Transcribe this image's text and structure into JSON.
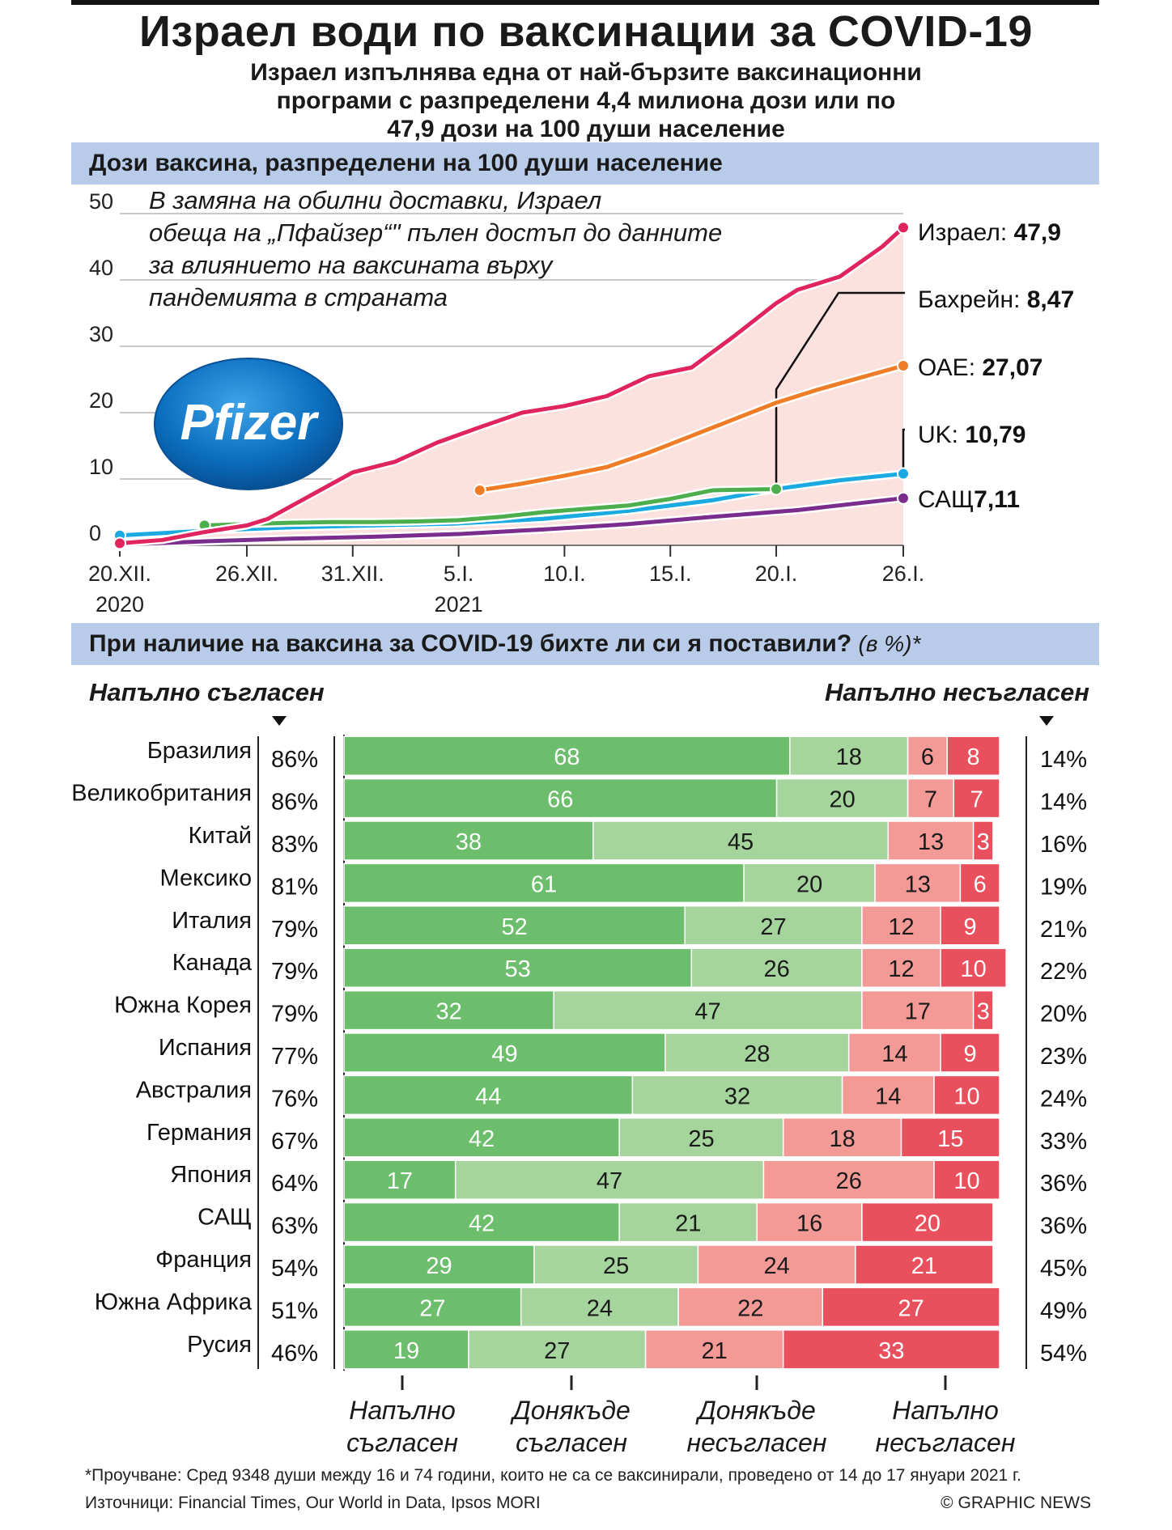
{
  "title": "Израел води по ваксинации за COVID-19",
  "subtitle_lines": [
    "Израел изпълнява една от най-бързите ваксинационни",
    "програми с разпределени 4,4 милиона дози или по",
    "47,9 дози на 100 души население"
  ],
  "section1_title": "Дози ваксина, разпределени на 100 души население",
  "annotation_lines": [
    "В замяна на обилни доставки, Израел",
    "обеща на „Пфайзер“\" пълен достъп до данните",
    "за влиянието на ваксината върху",
    "пандемията в страната"
  ],
  "logo_text": "Pfizer",
  "colors": {
    "israel": "#e0245e",
    "uae": "#ef7d28",
    "bahrain": "#4cae4c",
    "uk": "#1aa9e0",
    "usa": "#7b2d8e",
    "israel_area": "#fbe2df",
    "section_bar": "#b8cbe8",
    "strong_agree": "#6cbe6c",
    "somewhat_agree": "#a5d59c",
    "somewhat_disagree": "#f39a97",
    "strong_disagree": "#e9505d"
  },
  "chart_data": [
    {
      "type": "line",
      "title": "Дози ваксина, разпределени на 100 души население",
      "x_ticks": [
        {
          "label": "20.XII.",
          "sub": "2020",
          "day": 0
        },
        {
          "label": "26.XII.",
          "sub": "",
          "day": 6
        },
        {
          "label": "31.XII.",
          "sub": "",
          "day": 11
        },
        {
          "label": "5.I.",
          "sub": "2021",
          "day": 16
        },
        {
          "label": "10.I.",
          "sub": "",
          "day": 21
        },
        {
          "label": "15.I.",
          "sub": "",
          "day": 26
        },
        {
          "label": "20.I.",
          "sub": "",
          "day": 31
        },
        {
          "label": "26.I.",
          "sub": "",
          "day": 37
        }
      ],
      "y_ticks": [
        "50",
        "40",
        "30",
        "20",
        "10",
        "0"
      ],
      "ylim": [
        0,
        50
      ],
      "xlim": [
        0,
        37
      ],
      "series": [
        {
          "key": "israel",
          "name": "Израел:",
          "value_label": "47,9",
          "points": [
            [
              0,
              0.3
            ],
            [
              2,
              0.8
            ],
            [
              4,
              2
            ],
            [
              6,
              3
            ],
            [
              7,
              4
            ],
            [
              9,
              7.5
            ],
            [
              11,
              11
            ],
            [
              13,
              12.6
            ],
            [
              15,
              15.5
            ],
            [
              17,
              17.8
            ],
            [
              19,
              20
            ],
            [
              21,
              21
            ],
            [
              23,
              22.5
            ],
            [
              25,
              25.5
            ],
            [
              27,
              26.8
            ],
            [
              29,
              31.5
            ],
            [
              31,
              36.5
            ],
            [
              32,
              38.5
            ],
            [
              34,
              40.5
            ],
            [
              36,
              45
            ],
            [
              37,
              47.9
            ]
          ]
        },
        {
          "key": "uae",
          "name": "ОАЕ:",
          "value_label": "27,07",
          "points": [
            [
              17,
              8.3
            ],
            [
              19,
              9.3
            ],
            [
              21,
              10.5
            ],
            [
              23,
              11.8
            ],
            [
              25,
              14
            ],
            [
              27,
              16.5
            ],
            [
              29,
              19
            ],
            [
              31,
              21.5
            ],
            [
              33,
              23.5
            ],
            [
              35,
              25.3
            ],
            [
              37,
              27.07
            ]
          ]
        },
        {
          "key": "bahrain",
          "name": "Бахрейн:",
          "value_label": "8,47",
          "points": [
            [
              4,
              3
            ],
            [
              6,
              3.2
            ],
            [
              8,
              3.4
            ],
            [
              10,
              3.5
            ],
            [
              12,
              3.5
            ],
            [
              14,
              3.6
            ],
            [
              16,
              3.8
            ],
            [
              18,
              4.3
            ],
            [
              20,
              5
            ],
            [
              22,
              5.5
            ],
            [
              24,
              6
            ],
            [
              26,
              7
            ],
            [
              28,
              8.3
            ],
            [
              31,
              8.47
            ]
          ]
        },
        {
          "key": "uk",
          "name": "UK:",
          "value_label": "10,79",
          "points": [
            [
              0,
              1.5
            ],
            [
              4,
              2.2
            ],
            [
              8,
              2.7
            ],
            [
              12,
              3
            ],
            [
              16,
              3.3
            ],
            [
              20,
              4
            ],
            [
              24,
              5.2
            ],
            [
              28,
              6.8
            ],
            [
              31,
              8.5
            ],
            [
              34,
              9.8
            ],
            [
              37,
              10.79
            ]
          ]
        },
        {
          "key": "usa",
          "name": "САЩ",
          "value_label": "7,11",
          "points": [
            [
              0,
              0.1
            ],
            [
              4,
              0.6
            ],
            [
              8,
              1
            ],
            [
              12,
              1.3
            ],
            [
              16,
              1.7
            ],
            [
              20,
              2.4
            ],
            [
              24,
              3.2
            ],
            [
              28,
              4.3
            ],
            [
              32,
              5.3
            ],
            [
              37,
              7.11
            ]
          ]
        }
      ]
    },
    {
      "type": "bar",
      "title": "При наличие на ваксина за COVID-19 бихте ли си я поставили?",
      "unit_note": "(в %)*",
      "left_header": "Напълно съгласен",
      "right_header": "Напълно несъгласен",
      "segments": [
        "Напълно съгласен",
        "Донякъде съгласен",
        "Донякъде несъгласен",
        "Напълно несъгласен"
      ],
      "rows": [
        {
          "country": "Бразилия",
          "agree": "86%",
          "values": [
            68,
            18,
            6,
            8
          ],
          "disagree": "14%"
        },
        {
          "country": "Великобритания",
          "agree": "86%",
          "values": [
            66,
            20,
            7,
            7
          ],
          "disagree": "14%"
        },
        {
          "country": "Китай",
          "agree": "83%",
          "values": [
            38,
            45,
            13,
            3
          ],
          "disagree": "16%"
        },
        {
          "country": "Мексико",
          "agree": "81%",
          "values": [
            61,
            20,
            13,
            6
          ],
          "disagree": "19%"
        },
        {
          "country": "Италия",
          "agree": "79%",
          "values": [
            52,
            27,
            12,
            9
          ],
          "disagree": "21%"
        },
        {
          "country": "Канада",
          "agree": "79%",
          "values": [
            53,
            26,
            12,
            10
          ],
          "disagree": "22%"
        },
        {
          "country": "Южна Корея",
          "agree": "79%",
          "values": [
            32,
            47,
            17,
            3
          ],
          "disagree": "20%"
        },
        {
          "country": "Испания",
          "agree": "77%",
          "values": [
            49,
            28,
            14,
            9
          ],
          "disagree": "23%"
        },
        {
          "country": "Австралия",
          "agree": "76%",
          "values": [
            44,
            32,
            14,
            10
          ],
          "disagree": "24%"
        },
        {
          "country": "Германия",
          "agree": "67%",
          "values": [
            42,
            25,
            18,
            15
          ],
          "disagree": "33%"
        },
        {
          "country": "Япония",
          "agree": "64%",
          "values": [
            17,
            47,
            26,
            10
          ],
          "disagree": "36%"
        },
        {
          "country": "САЩ",
          "agree": "63%",
          "values": [
            42,
            21,
            16,
            20
          ],
          "disagree": "36%"
        },
        {
          "country": "Франция",
          "agree": "54%",
          "values": [
            29,
            25,
            24,
            21
          ],
          "disagree": "45%"
        },
        {
          "country": "Южна Африка",
          "agree": "51%",
          "values": [
            27,
            24,
            22,
            27
          ],
          "disagree": "49%"
        },
        {
          "country": "Русия",
          "agree": "46%",
          "values": [
            19,
            27,
            21,
            33
          ],
          "disagree": "54%"
        }
      ]
    }
  ],
  "legend": [
    [
      "Напълно",
      "съгласен"
    ],
    [
      "Донякъде",
      "съгласен"
    ],
    [
      "Донякъде",
      "несъгласен"
    ],
    [
      "Напълно",
      "несъгласен"
    ]
  ],
  "footnote": "*Проучване: Сред 9348 души между 16 и 74 години, които не са се ваксинирали, проведено от 14 до 17 януари 2021 г.",
  "sources": "Източници: Financial Times, Our World in Data, Ipsos MORI",
  "credit": "© GRAPHIC NEWS"
}
